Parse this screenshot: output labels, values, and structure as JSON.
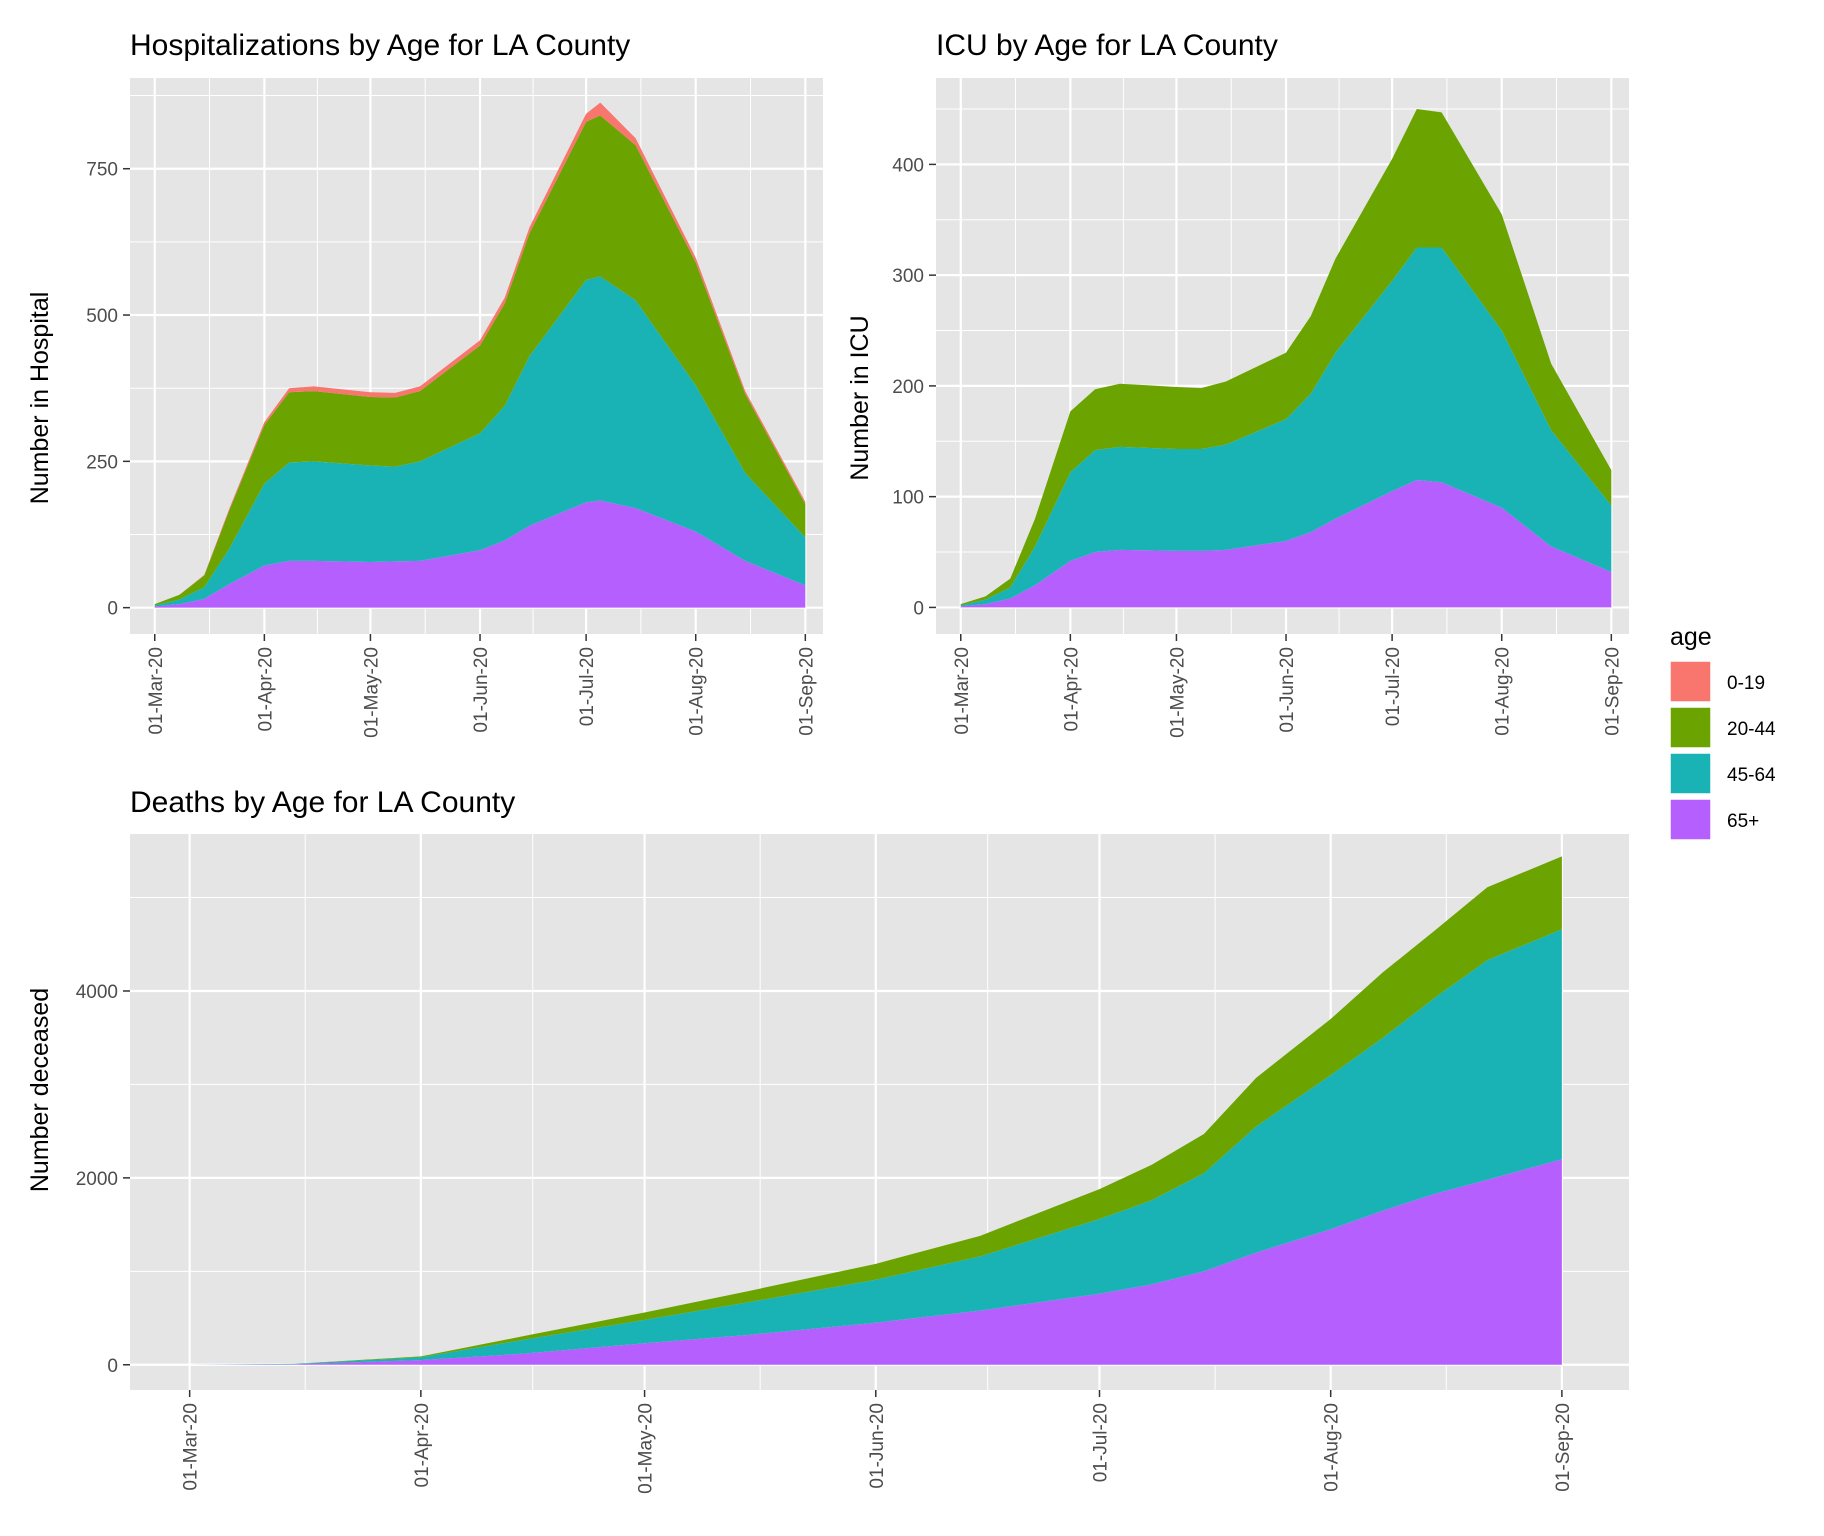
{
  "colors": {
    "age_0_19": "#F8766D",
    "age_20_44": "#6BA300",
    "age_45_64": "#1AB3B5",
    "age_65_plus": "#B65FFF",
    "panel_background": "#E5E5E5",
    "grid": "#FFFFFF"
  },
  "legend": {
    "title": "age",
    "items": [
      {
        "label": "0-19",
        "color": "#F8766D"
      },
      {
        "label": "20-44",
        "color": "#6BA300"
      },
      {
        "label": "45-64",
        "color": "#1AB3B5"
      },
      {
        "label": "65+",
        "color": "#B65FFF"
      }
    ]
  },
  "chart_data": [
    {
      "type": "area",
      "stacked": true,
      "title": "Hospitalizations by Age for LA County",
      "xlabel": "",
      "ylabel": "Number in Hospital",
      "x_tick_labels": [
        "01-Mar-20",
        "01-Apr-20",
        "01-May-20",
        "01-Jun-20",
        "01-Jul-20",
        "01-Aug-20",
        "01-Sep-20"
      ],
      "y_ticks": [
        0,
        250,
        500,
        750
      ],
      "xlim": [
        "2020-02-23",
        "2020-09-06"
      ],
      "ylim": [
        -45,
        905
      ],
      "grid": true,
      "x": [
        "2020-03-01",
        "2020-03-08",
        "2020-03-15",
        "2020-03-22",
        "2020-04-01",
        "2020-04-08",
        "2020-04-15",
        "2020-05-01",
        "2020-05-08",
        "2020-05-15",
        "2020-06-01",
        "2020-06-08",
        "2020-06-15",
        "2020-07-01",
        "2020-07-05",
        "2020-07-15",
        "2020-08-01",
        "2020-08-15",
        "2020-09-01"
      ],
      "series": [
        {
          "name": "65+",
          "values": [
            2,
            6,
            15,
            40,
            72,
            80,
            80,
            78,
            79,
            80,
            98,
            115,
            140,
            180,
            183,
            170,
            130,
            80,
            38
          ]
        },
        {
          "name": "45-64",
          "values": [
            2,
            8,
            20,
            60,
            140,
            168,
            170,
            165,
            162,
            170,
            200,
            230,
            290,
            380,
            383,
            355,
            250,
            150,
            82
          ]
        },
        {
          "name": "20-44",
          "values": [
            2,
            8,
            20,
            65,
            100,
            120,
            120,
            117,
            118,
            120,
            150,
            175,
            210,
            270,
            275,
            265,
            210,
            135,
            57
          ]
        },
        {
          "name": "0-19",
          "values": [
            0,
            0,
            1,
            3,
            5,
            7,
            8,
            8,
            8,
            8,
            9,
            10,
            10,
            14,
            22,
            12,
            8,
            5,
            4
          ]
        }
      ]
    },
    {
      "type": "area",
      "stacked": true,
      "title": "ICU by Age for LA County",
      "xlabel": "",
      "ylabel": "Number in ICU",
      "x_tick_labels": [
        "01-Mar-20",
        "01-Apr-20",
        "01-May-20",
        "01-Jun-20",
        "01-Jul-20",
        "01-Aug-20",
        "01-Sep-20"
      ],
      "y_ticks": [
        0,
        100,
        200,
        300,
        400
      ],
      "xlim": [
        "2020-02-23",
        "2020-09-06"
      ],
      "ylim": [
        -24,
        478
      ],
      "grid": true,
      "x": [
        "2020-03-01",
        "2020-03-08",
        "2020-03-15",
        "2020-03-22",
        "2020-04-01",
        "2020-04-08",
        "2020-04-15",
        "2020-05-01",
        "2020-05-08",
        "2020-05-15",
        "2020-06-01",
        "2020-06-08",
        "2020-06-15",
        "2020-07-01",
        "2020-07-08",
        "2020-07-15",
        "2020-08-01",
        "2020-08-15",
        "2020-09-01"
      ],
      "series": [
        {
          "name": "65+",
          "values": [
            1,
            3,
            8,
            20,
            42,
            50,
            52,
            51,
            51,
            52,
            60,
            68,
            80,
            105,
            115,
            113,
            90,
            55,
            32
          ]
        },
        {
          "name": "45-64",
          "values": [
            1,
            4,
            10,
            35,
            80,
            92,
            93,
            92,
            92,
            95,
            110,
            125,
            150,
            190,
            210,
            212,
            160,
            105,
            60
          ]
        },
        {
          "name": "20-44",
          "values": [
            1,
            3,
            8,
            25,
            55,
            55,
            57,
            56,
            55,
            57,
            60,
            70,
            85,
            110,
            125,
            122,
            105,
            60,
            32
          ]
        }
      ]
    },
    {
      "type": "area",
      "stacked": true,
      "title": "Deaths by Age for LA County",
      "xlabel": "",
      "ylabel": "Number deceased",
      "x_tick_labels": [
        "01-Mar-20",
        "01-Apr-20",
        "01-May-20",
        "01-Jun-20",
        "01-Jul-20",
        "01-Aug-20",
        "01-Sep-20"
      ],
      "y_ticks": [
        0,
        2000,
        4000
      ],
      "xlim": [
        "2020-02-22",
        "2020-09-10"
      ],
      "ylim": [
        -270,
        5680
      ],
      "grid": true,
      "x": [
        "2020-03-01",
        "2020-03-15",
        "2020-04-01",
        "2020-04-15",
        "2020-05-01",
        "2020-05-15",
        "2020-06-01",
        "2020-06-15",
        "2020-07-01",
        "2020-07-08",
        "2020-07-15",
        "2020-07-22",
        "2020-08-01",
        "2020-08-08",
        "2020-08-15",
        "2020-08-22",
        "2020-09-01"
      ],
      "series": [
        {
          "name": "65+",
          "values": [
            0,
            5,
            50,
            120,
            230,
            320,
            450,
            580,
            760,
            860,
            1000,
            1200,
            1450,
            1650,
            1830,
            1980,
            2200
          ]
        },
        {
          "name": "45-64",
          "values": [
            0,
            5,
            30,
            150,
            250,
            350,
            460,
            580,
            800,
            900,
            1050,
            1350,
            1650,
            1850,
            2100,
            2350,
            2460
          ]
        },
        {
          "name": "20-44",
          "values": [
            0,
            0,
            10,
            40,
            80,
            120,
            170,
            220,
            320,
            380,
            420,
            520,
            600,
            700,
            720,
            780,
            780
          ]
        },
        {
          "name": "0-19",
          "values": [
            0,
            0,
            0,
            0,
            0,
            0,
            0,
            0,
            0,
            0,
            0,
            0,
            0,
            0,
            0,
            0,
            0
          ]
        }
      ]
    }
  ]
}
